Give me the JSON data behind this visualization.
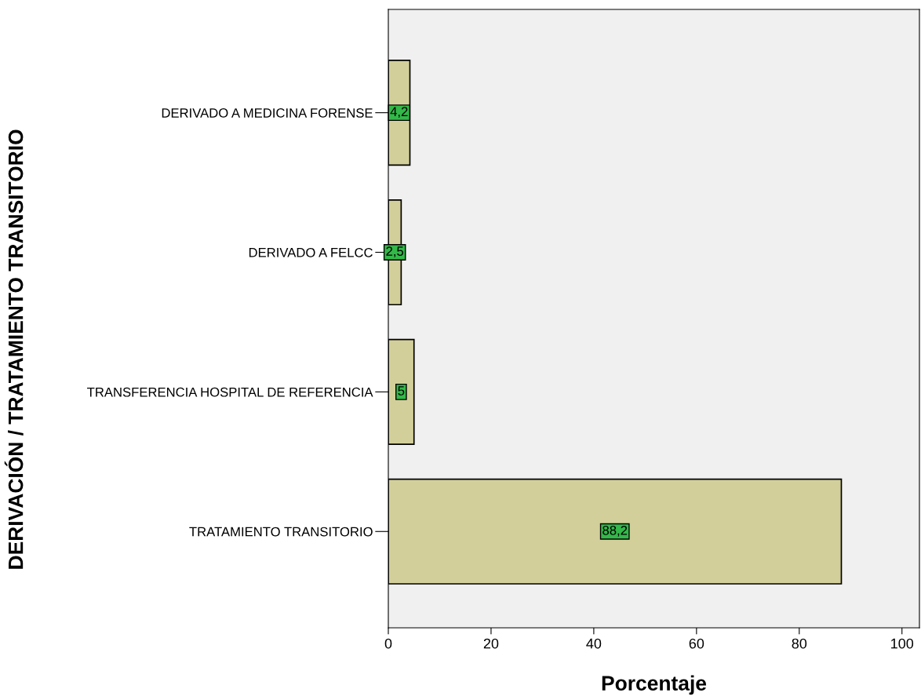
{
  "chart_data": {
    "type": "bar",
    "orientation": "horizontal",
    "categories": [
      "DERIVADO A MEDICINA FORENSE",
      "DERIVADO A FELCC",
      "TRANSFERENCIA HOSPITAL DE REFERENCIA",
      "TRATAMIENTO TRANSITORIO"
    ],
    "values": [
      4.2,
      2.5,
      5,
      88.2
    ],
    "value_labels": [
      "4,2",
      "2,5",
      "5",
      "88,2"
    ],
    "color": "#d3cf9a",
    "xlabel": "Porcentaje",
    "ylabel": "DERIVACIÓN / TRATAMIENTO TRANSITORIO",
    "xlim": [
      0,
      103.4
    ],
    "xticks": [
      0,
      20,
      40,
      60,
      80,
      100
    ],
    "grid": false,
    "legend": false
  }
}
